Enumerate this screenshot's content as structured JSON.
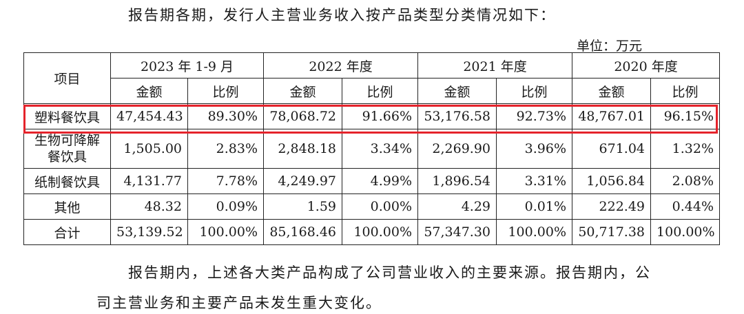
{
  "intro": "报告期各期，发行人主营业务收入按产品类型分类情况如下：",
  "unit": "单位：万元",
  "table": {
    "item_header": "项目",
    "periods": [
      "2023 年 1-9 月",
      "2022 年度",
      "2021 年度",
      "2020 年度"
    ],
    "sub_headers": {
      "amount": "金额",
      "ratio": "比例"
    },
    "rows": [
      {
        "name": "塑料餐饮具",
        "cells": [
          "47,454.43",
          "89.30%",
          "78,068.72",
          "91.66%",
          "53,176.58",
          "92.73%",
          "48,767.01",
          "96.15%"
        ]
      },
      {
        "name": "生物可降解餐饮具",
        "cells": [
          "1,505.00",
          "2.83%",
          "2,848.18",
          "3.34%",
          "2,269.90",
          "3.96%",
          "671.04",
          "1.32%"
        ]
      },
      {
        "name": "纸制餐饮具",
        "cells": [
          "4,131.77",
          "7.78%",
          "4,249.97",
          "4.99%",
          "1,896.54",
          "3.31%",
          "1,056.84",
          "2.08%"
        ]
      },
      {
        "name": "其他",
        "cells": [
          "48.32",
          "0.09%",
          "1.59",
          "0.00%",
          "4.29",
          "0.01%",
          "222.49",
          "0.44%"
        ]
      },
      {
        "name": "合计",
        "cells": [
          "53,139.52",
          "100.00%",
          "85,168.46",
          "100.00%",
          "57,347.30",
          "100.00%",
          "50,717.38",
          "100.00%"
        ]
      }
    ],
    "highlighted_row": "塑料餐饮具",
    "highlight_color": "#e5232b"
  },
  "outro_line1": "报告期内，上述各大类产品构成了公司营业收入的主要来源。报告期内，公",
  "outro_line2": "司主营业务和主要产品未发生重大变化。"
}
